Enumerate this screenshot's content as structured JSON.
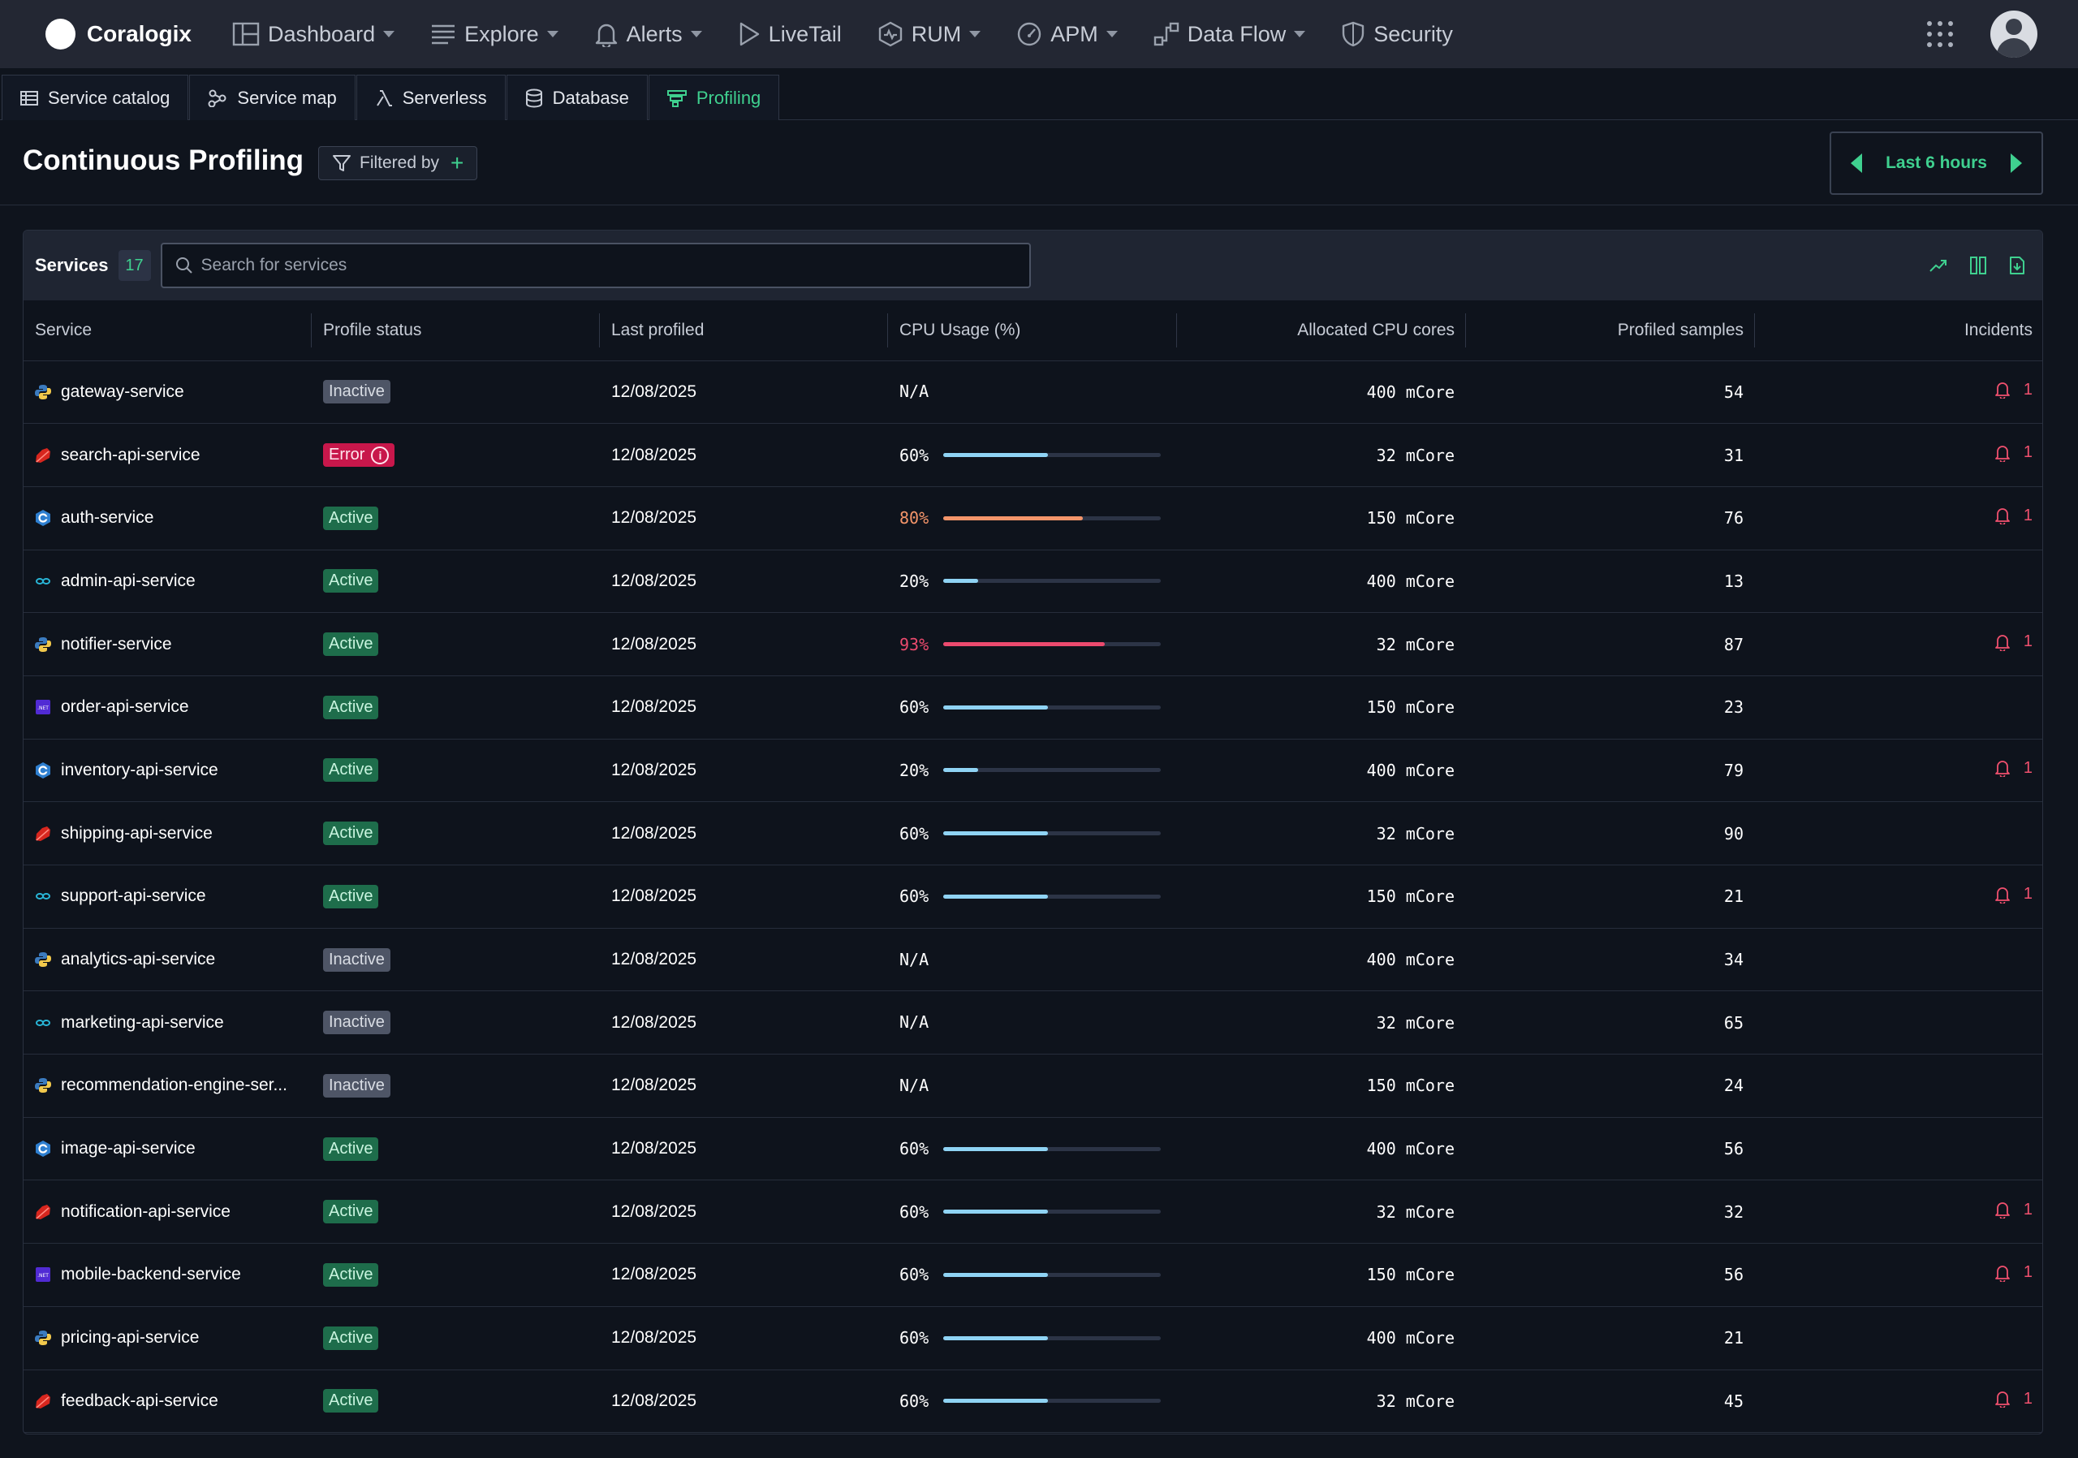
{
  "brand": {
    "name": "Coralogix"
  },
  "nav": {
    "items": [
      {
        "label": "Dashboard",
        "icon": "dashboard-icon",
        "dropdown": true
      },
      {
        "label": "Explore",
        "icon": "explore-icon",
        "dropdown": true
      },
      {
        "label": "Alerts",
        "icon": "bell-icon",
        "dropdown": true
      },
      {
        "label": "LiveTail",
        "icon": "play-icon",
        "dropdown": false
      },
      {
        "label": "RUM",
        "icon": "rum-icon",
        "dropdown": true
      },
      {
        "label": "APM",
        "icon": "gauge-icon",
        "dropdown": true
      },
      {
        "label": "Data Flow",
        "icon": "data-flow-icon",
        "dropdown": true
      },
      {
        "label": "Security",
        "icon": "shield-icon",
        "dropdown": false
      }
    ]
  },
  "subtabs": [
    {
      "label": "Service catalog",
      "icon": "catalog-icon",
      "active": false
    },
    {
      "label": "Service map",
      "icon": "map-icon",
      "active": false
    },
    {
      "label": "Serverless",
      "icon": "lambda-icon",
      "active": false
    },
    {
      "label": "Database",
      "icon": "database-icon",
      "active": false
    },
    {
      "label": "Profiling",
      "icon": "profiling-icon",
      "active": true
    }
  ],
  "page": {
    "title": "Continuous Profiling",
    "filter_label": "Filtered by",
    "time_range": "Last 6 hours"
  },
  "toolbar": {
    "services_label": "Services",
    "services_count": "17",
    "search_placeholder": "Search for services"
  },
  "table": {
    "columns": [
      "Service",
      "Profile status",
      "Last profiled",
      "CPU Usage (%)",
      "Allocated CPU cores",
      "Profiled samples",
      "Incidents"
    ],
    "rows": [
      {
        "service": "gateway-service",
        "lang": "python",
        "status": "Inactive",
        "last_profiled": "12/08/2025",
        "cpu": "N/A",
        "cpu_pct": null,
        "cores": "400 mCore",
        "samples": "54",
        "incidents": "1"
      },
      {
        "service": "search-api-service",
        "lang": "ruby",
        "status": "Error",
        "last_profiled": "12/08/2025",
        "cpu": "60%",
        "cpu_pct": 60,
        "cores": "32 mCore",
        "samples": "31",
        "incidents": "1"
      },
      {
        "service": "auth-service",
        "lang": "c",
        "status": "Active",
        "last_profiled": "12/08/2025",
        "cpu": "80%",
        "cpu_pct": 80,
        "cores": "150 mCore",
        "samples": "76",
        "incidents": "1"
      },
      {
        "service": "admin-api-service",
        "lang": "go",
        "status": "Active",
        "last_profiled": "12/08/2025",
        "cpu": "20%",
        "cpu_pct": 20,
        "cores": "400 mCore",
        "samples": "13",
        "incidents": ""
      },
      {
        "service": "notifier-service",
        "lang": "python",
        "status": "Active",
        "last_profiled": "12/08/2025",
        "cpu": "93%",
        "cpu_pct": 93,
        "cores": "32 mCore",
        "samples": "87",
        "incidents": "1"
      },
      {
        "service": "order-api-service",
        "lang": "dotnet",
        "status": "Active",
        "last_profiled": "12/08/2025",
        "cpu": "60%",
        "cpu_pct": 60,
        "cores": "150 mCore",
        "samples": "23",
        "incidents": ""
      },
      {
        "service": "inventory-api-service",
        "lang": "c",
        "status": "Active",
        "last_profiled": "12/08/2025",
        "cpu": "20%",
        "cpu_pct": 20,
        "cores": "400 mCore",
        "samples": "79",
        "incidents": "1"
      },
      {
        "service": "shipping-api-service",
        "lang": "ruby",
        "status": "Active",
        "last_profiled": "12/08/2025",
        "cpu": "60%",
        "cpu_pct": 60,
        "cores": "32 mCore",
        "samples": "90",
        "incidents": ""
      },
      {
        "service": "support-api-service",
        "lang": "go",
        "status": "Active",
        "last_profiled": "12/08/2025",
        "cpu": "60%",
        "cpu_pct": 60,
        "cores": "150 mCore",
        "samples": "21",
        "incidents": "1"
      },
      {
        "service": "analytics-api-service",
        "lang": "python",
        "status": "Inactive",
        "last_profiled": "12/08/2025",
        "cpu": "N/A",
        "cpu_pct": null,
        "cores": "400 mCore",
        "samples": "34",
        "incidents": ""
      },
      {
        "service": "marketing-api-service",
        "lang": "go",
        "status": "Inactive",
        "last_profiled": "12/08/2025",
        "cpu": "N/A",
        "cpu_pct": null,
        "cores": "32 mCore",
        "samples": "65",
        "incidents": ""
      },
      {
        "service": "recommendation-engine-ser...",
        "lang": "python",
        "status": "Inactive",
        "last_profiled": "12/08/2025",
        "cpu": "N/A",
        "cpu_pct": null,
        "cores": "150 mCore",
        "samples": "24",
        "incidents": ""
      },
      {
        "service": "image-api-service",
        "lang": "c",
        "status": "Active",
        "last_profiled": "12/08/2025",
        "cpu": "60%",
        "cpu_pct": 60,
        "cores": "400 mCore",
        "samples": "56",
        "incidents": ""
      },
      {
        "service": "notification-api-service",
        "lang": "ruby",
        "status": "Active",
        "last_profiled": "12/08/2025",
        "cpu": "60%",
        "cpu_pct": 60,
        "cores": "32 mCore",
        "samples": "32",
        "incidents": "1"
      },
      {
        "service": "mobile-backend-service",
        "lang": "dotnet",
        "status": "Active",
        "last_profiled": "12/08/2025",
        "cpu": "60%",
        "cpu_pct": 60,
        "cores": "150 mCore",
        "samples": "56",
        "incidents": "1"
      },
      {
        "service": "pricing-api-service",
        "lang": "python",
        "status": "Active",
        "last_profiled": "12/08/2025",
        "cpu": "60%",
        "cpu_pct": 60,
        "cores": "400 mCore",
        "samples": "21",
        "incidents": ""
      },
      {
        "service": "feedback-api-service",
        "lang": "ruby",
        "status": "Active",
        "last_profiled": "12/08/2025",
        "cpu": "60%",
        "cpu_pct": 60,
        "cores": "32 mCore",
        "samples": "45",
        "incidents": "1"
      }
    ]
  },
  "colors": {
    "accent": "#3fd08f",
    "cpu_normal": "#8fd3f4",
    "cpu_warn": "#f4956a",
    "cpu_critical": "#ec4a6e",
    "incident": "#f0506e"
  }
}
